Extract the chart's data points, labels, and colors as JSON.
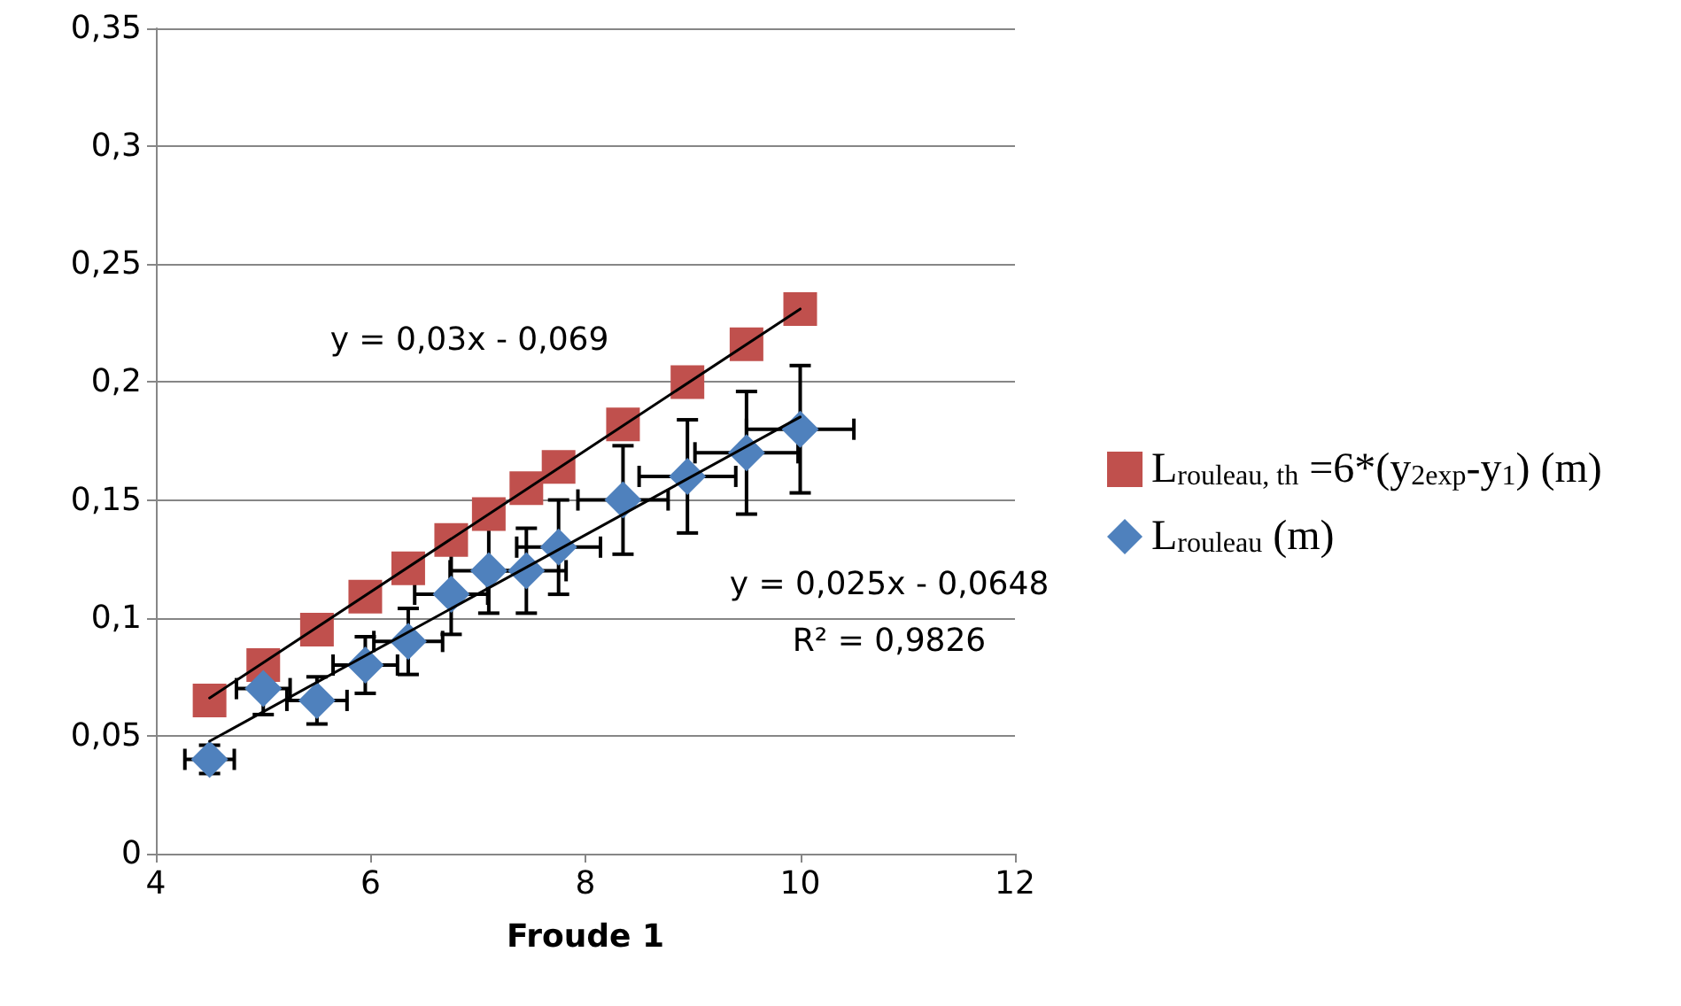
{
  "chart_data": {
    "type": "scatter",
    "xlabel": "Froude 1",
    "xlim": [
      4,
      12
    ],
    "xticks": [
      4,
      6,
      8,
      10,
      12
    ],
    "ylim": [
      0,
      0.35
    ],
    "yticks": [
      {
        "value": 0,
        "label": "0"
      },
      {
        "value": 0.05,
        "label": "0,05"
      },
      {
        "value": 0.1,
        "label": "0,1"
      },
      {
        "value": 0.15,
        "label": "0,15"
      },
      {
        "value": 0.2,
        "label": "0,2"
      },
      {
        "value": 0.25,
        "label": "0,25"
      },
      {
        "value": 0.3,
        "label": "0,3"
      },
      {
        "value": 0.35,
        "label": "0,35"
      }
    ],
    "grid": "y",
    "legend": "right",
    "series": [
      {
        "name": "L$_{rouleau, th}$ =6*(y$_{2exp}$-y$_{1}$) (m)",
        "marker": "square",
        "color": "#c0504d",
        "x": [
          4.5,
          5.0,
          5.5,
          5.95,
          6.35,
          6.75,
          7.1,
          7.45,
          7.75,
          8.35,
          8.95,
          9.5,
          10.0
        ],
        "values": [
          0.065,
          0.08,
          0.095,
          0.109,
          0.121,
          0.133,
          0.144,
          0.155,
          0.164,
          0.182,
          0.2,
          0.216,
          0.231
        ]
      },
      {
        "name": "L$_{rouleau}$ (m)",
        "marker": "diamond",
        "color": "#4f81bd",
        "x": [
          4.5,
          5.0,
          5.5,
          5.95,
          6.35,
          6.75,
          7.1,
          7.45,
          7.75,
          8.35,
          8.95,
          9.5,
          10.0
        ],
        "values": [
          0.04,
          0.07,
          0.065,
          0.08,
          0.09,
          0.11,
          0.12,
          0.12,
          0.13,
          0.15,
          0.16,
          0.17,
          0.18
        ],
        "errors": [
          0.006,
          0.011,
          0.01,
          0.012,
          0.014,
          0.017,
          0.018,
          0.018,
          0.02,
          0.023,
          0.024,
          0.026,
          0.027
        ],
        "xerrors": [
          0.23,
          0.25,
          0.28,
          0.3,
          0.32,
          0.34,
          0.36,
          0.37,
          0.39,
          0.42,
          0.45,
          0.48,
          0.5
        ]
      },
      {
        "type": "line",
        "marker": "none",
        "line_style": "solid",
        "color": "#000000",
        "x": [
          4.5,
          10.0
        ],
        "values": [
          0.066,
          0.231
        ]
      },
      {
        "type": "line",
        "marker": "none",
        "line_style": "solid",
        "color": "#000000",
        "x": [
          4.5,
          10.0
        ],
        "values": [
          0.0477,
          0.1852
        ]
      }
    ],
    "annotations": [
      "y = 0,03x - 0,069",
      "y = 0,025x - 0,0648",
      "R² = 0,9826"
    ]
  }
}
